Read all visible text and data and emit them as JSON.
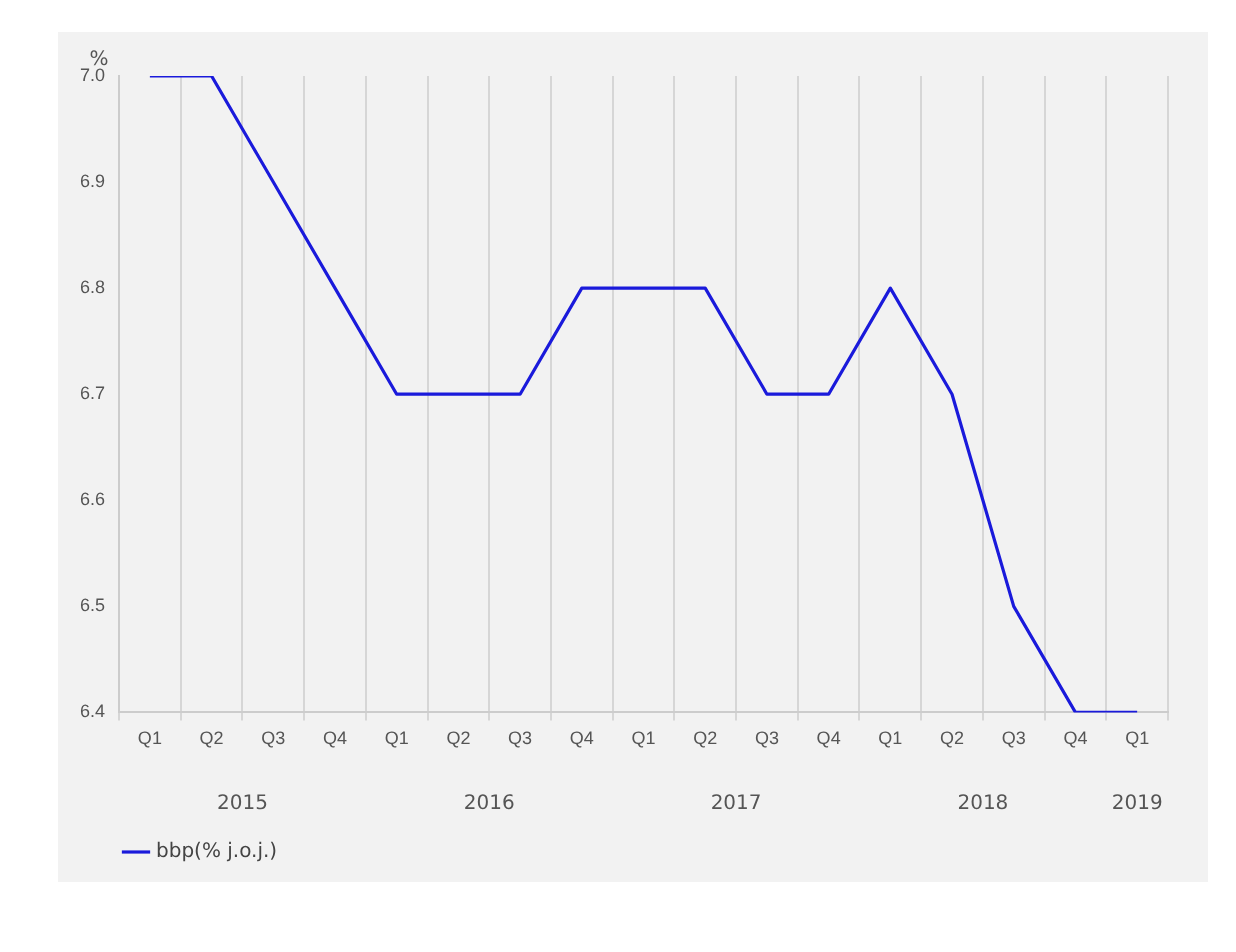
{
  "chart_data": {
    "type": "line",
    "ylabel": "%",
    "categories": [
      "Q1",
      "Q2",
      "Q3",
      "Q4",
      "Q1",
      "Q2",
      "Q3",
      "Q4",
      "Q1",
      "Q2",
      "Q3",
      "Q4",
      "Q1",
      "Q2",
      "Q3",
      "Q4",
      "Q1"
    ],
    "series": [
      {
        "name": "bbp(% j.o.j.)",
        "color": "#1a1adb",
        "values": [
          7.0,
          7.0,
          6.9,
          6.8,
          6.7,
          6.7,
          6.7,
          6.8,
          6.8,
          6.8,
          6.7,
          6.7,
          6.8,
          6.7,
          6.5,
          6.4,
          6.4
        ]
      }
    ],
    "ylim": [
      6.4,
      7.0
    ],
    "yticks": [
      6.4,
      6.5,
      6.6,
      6.7,
      6.8,
      6.9,
      {
        "value": 7,
        "label": "7.0"
      }
    ],
    "annotations": [
      "2015",
      "2016",
      "2017",
      "2018",
      "2019"
    ],
    "grid": "x",
    "legend": "bottom left",
    "marker": "none",
    "line_style": "solid"
  }
}
